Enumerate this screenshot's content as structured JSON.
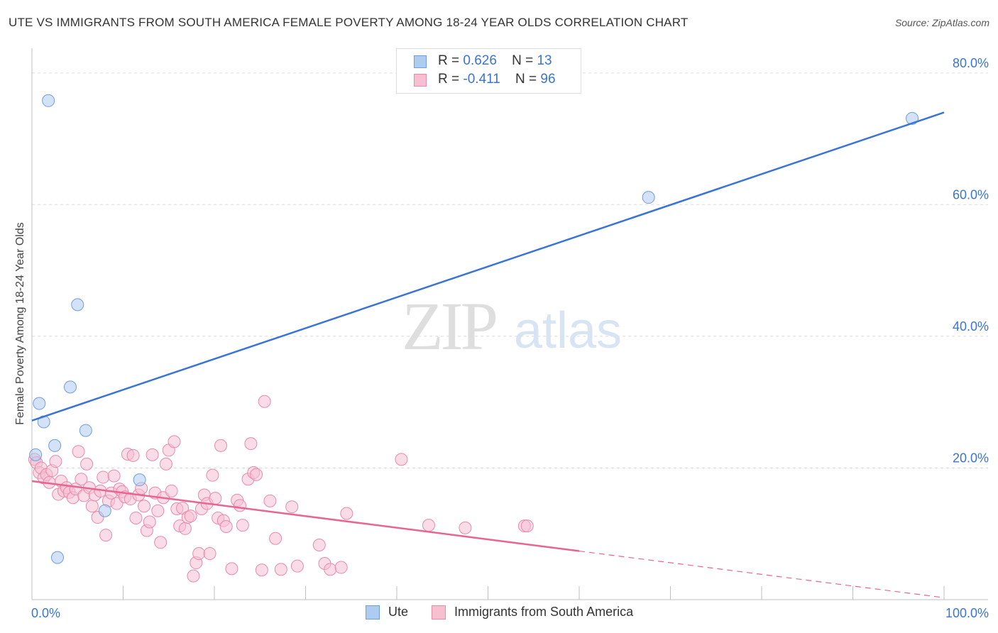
{
  "chart_data": {
    "type": "scatter",
    "title": "UTE VS IMMIGRANTS FROM SOUTH AMERICA FEMALE POVERTY AMONG 18-24 YEAR OLDS CORRELATION CHART",
    "source": "Source: ZipAtlas.com",
    "ylabel": "Female Poverty Among 18-24 Year Olds",
    "xlabel": "",
    "xlim": [
      0,
      100
    ],
    "ylim": [
      0,
      83
    ],
    "x_tick_labels": [
      "0.0%",
      "100.0%"
    ],
    "y_ticks": [
      20,
      40,
      60,
      80
    ],
    "y_tick_labels": [
      "20.0%",
      "40.0%",
      "60.0%",
      "80.0%"
    ],
    "grid": true,
    "watermark": {
      "zip": "ZIP",
      "atlas": "atlas"
    },
    "legend": [
      {
        "r_label": "R =",
        "r_value": "0.626",
        "n_label": "N =",
        "n_value": "13"
      },
      {
        "r_label": "R =",
        "r_value": "-0.411",
        "n_label": "N =",
        "n_value": "96"
      }
    ],
    "series": [
      {
        "name": "Ute",
        "color": "#aecbf0",
        "stroke": "#6f9ee0",
        "line_color": "#3a74d4",
        "trend": {
          "x0": 0,
          "y0": 27.2,
          "x1": 100,
          "y1": 74.0,
          "solid_until": 100
        },
        "points": [
          [
            1.8,
            75.8
          ],
          [
            0.8,
            29.8
          ],
          [
            1.3,
            27.0
          ],
          [
            2.5,
            23.4
          ],
          [
            0.4,
            22.0
          ],
          [
            4.2,
            32.3
          ],
          [
            5.0,
            44.8
          ],
          [
            5.9,
            25.7
          ],
          [
            8.0,
            13.5
          ],
          [
            11.8,
            18.2
          ],
          [
            2.8,
            6.4
          ],
          [
            67.6,
            61.1
          ],
          [
            96.5,
            73.1
          ]
        ]
      },
      {
        "name": "Immigrants from South America",
        "color": "#f6c0d1",
        "stroke": "#e98aa8",
        "line_color": "#e8658f",
        "trend": {
          "x0": 0,
          "y0": 18.0,
          "x1": 100,
          "y1": 0.3,
          "solid_until": 60
        },
        "points": [
          [
            0.3,
            21.3
          ],
          [
            0.5,
            20.8
          ],
          [
            0.8,
            19.3
          ],
          [
            1.0,
            20.0
          ],
          [
            1.3,
            18.5
          ],
          [
            1.6,
            19.0
          ],
          [
            1.9,
            17.8
          ],
          [
            2.2,
            19.6
          ],
          [
            2.6,
            21.0
          ],
          [
            2.9,
            16.0
          ],
          [
            3.2,
            18.0
          ],
          [
            3.5,
            16.5
          ],
          [
            3.8,
            17.0
          ],
          [
            4.1,
            16.3
          ],
          [
            4.5,
            15.5
          ],
          [
            4.8,
            16.8
          ],
          [
            5.1,
            22.5
          ],
          [
            5.4,
            18.3
          ],
          [
            5.7,
            15.8
          ],
          [
            6.0,
            20.6
          ],
          [
            6.3,
            17.0
          ],
          [
            6.6,
            14.2
          ],
          [
            6.9,
            15.9
          ],
          [
            7.2,
            12.5
          ],
          [
            7.5,
            16.5
          ],
          [
            7.8,
            18.6
          ],
          [
            8.1,
            9.8
          ],
          [
            8.4,
            15.0
          ],
          [
            8.7,
            16.2
          ],
          [
            9.0,
            18.8
          ],
          [
            9.3,
            14.6
          ],
          [
            9.6,
            16.8
          ],
          [
            9.9,
            16.4
          ],
          [
            10.2,
            15.6
          ],
          [
            10.5,
            22.1
          ],
          [
            10.8,
            15.3
          ],
          [
            11.1,
            21.9
          ],
          [
            11.4,
            12.4
          ],
          [
            11.7,
            15.9
          ],
          [
            12.0,
            16.9
          ],
          [
            12.3,
            14.2
          ],
          [
            12.6,
            10.5
          ],
          [
            12.9,
            11.8
          ],
          [
            13.2,
            22.0
          ],
          [
            13.5,
            16.2
          ],
          [
            13.8,
            13.5
          ],
          [
            14.1,
            8.7
          ],
          [
            14.4,
            15.5
          ],
          [
            14.7,
            20.6
          ],
          [
            15.0,
            22.7
          ],
          [
            15.3,
            16.5
          ],
          [
            15.6,
            24.0
          ],
          [
            15.9,
            13.8
          ],
          [
            16.2,
            11.2
          ],
          [
            16.5,
            13.9
          ],
          [
            16.8,
            10.8
          ],
          [
            17.1,
            12.5
          ],
          [
            17.4,
            12.7
          ],
          [
            17.7,
            3.6
          ],
          [
            18.0,
            5.6
          ],
          [
            18.3,
            7.0
          ],
          [
            18.6,
            13.8
          ],
          [
            18.9,
            15.9
          ],
          [
            19.2,
            14.6
          ],
          [
            19.5,
            7.0
          ],
          [
            19.8,
            18.9
          ],
          [
            20.1,
            15.4
          ],
          [
            20.4,
            12.4
          ],
          [
            20.7,
            23.4
          ],
          [
            21.0,
            12.0
          ],
          [
            21.3,
            11.1
          ],
          [
            21.9,
            4.7
          ],
          [
            22.5,
            15.1
          ],
          [
            22.8,
            14.3
          ],
          [
            23.1,
            11.3
          ],
          [
            23.7,
            18.3
          ],
          [
            24.0,
            23.7
          ],
          [
            24.3,
            19.3
          ],
          [
            25.2,
            4.5
          ],
          [
            25.5,
            30.1
          ],
          [
            26.1,
            15.0
          ],
          [
            26.7,
            9.3
          ],
          [
            27.3,
            4.6
          ],
          [
            28.5,
            14.1
          ],
          [
            29.1,
            5.1
          ],
          [
            31.5,
            8.3
          ],
          [
            32.1,
            5.5
          ],
          [
            32.7,
            4.6
          ],
          [
            33.9,
            4.9
          ],
          [
            34.5,
            13.1
          ],
          [
            40.5,
            21.3
          ],
          [
            43.5,
            11.3
          ],
          [
            47.5,
            10.9
          ],
          [
            54.0,
            11.2
          ],
          [
            54.3,
            11.2
          ],
          [
            24.6,
            19.0
          ]
        ]
      }
    ]
  }
}
